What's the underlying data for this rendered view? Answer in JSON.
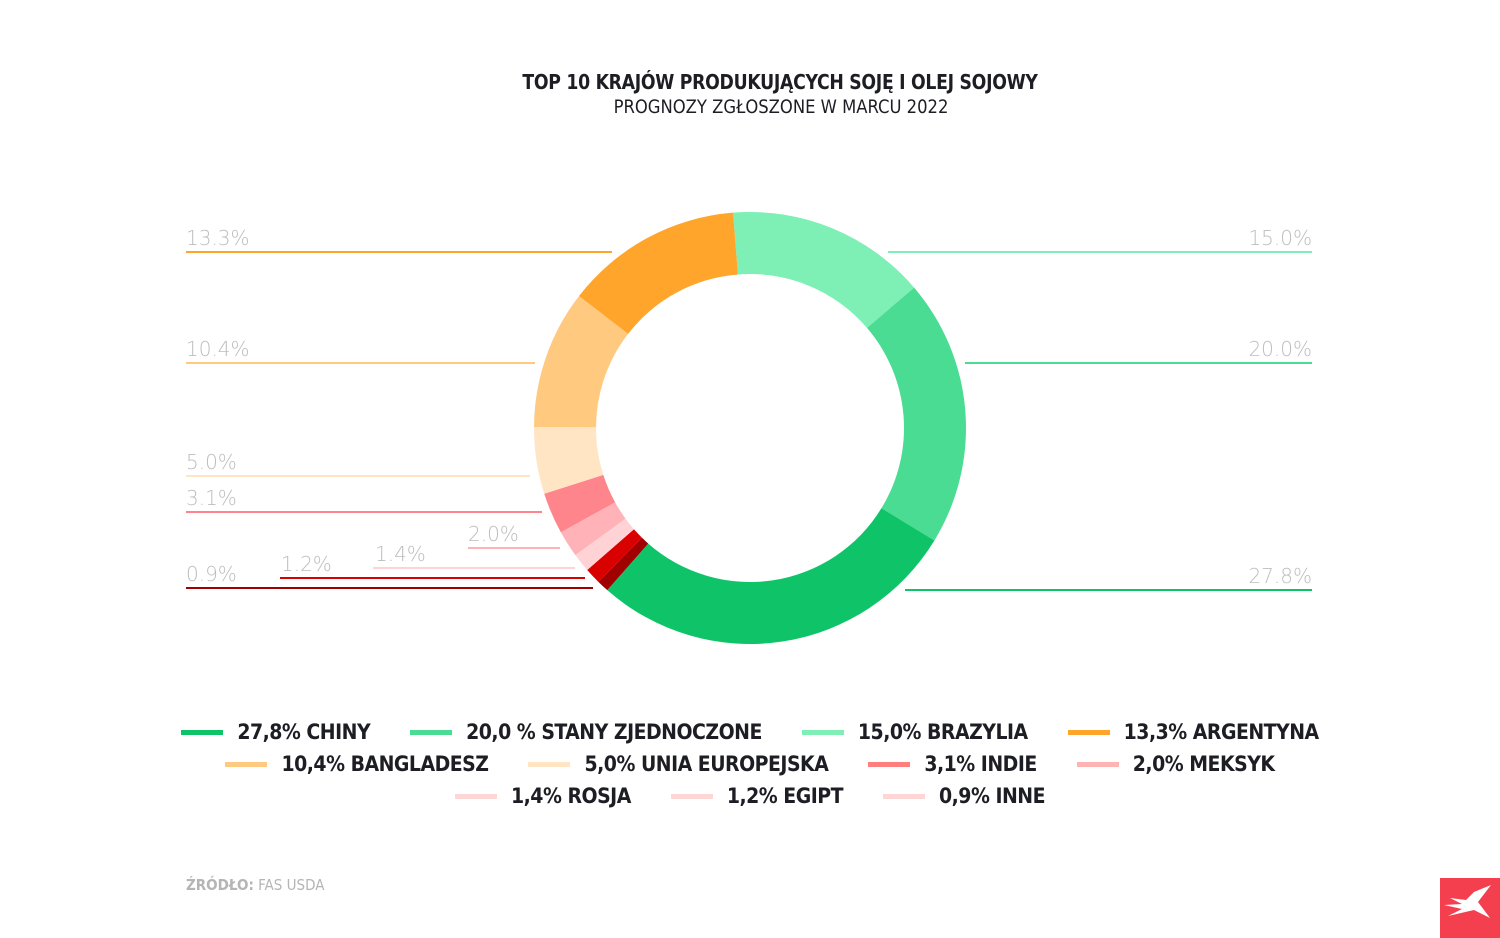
{
  "chart_data": {
    "type": "pie",
    "donut": true,
    "title": "TOP 10 KRAJÓW PRODUKUJĄCYCH SOJĘ I OLEJ SOJOWY",
    "subtitle": "PROGNOZY ZGŁOSZONE W MARCU 2022",
    "slices": [
      {
        "label": "15.0%",
        "value": 15.0,
        "color": "#7ef0b5"
      },
      {
        "label": "20.0%",
        "value": 20.0,
        "color": "#4bdc94"
      },
      {
        "label": "27.8%",
        "value": 27.8,
        "color": "#0fc468"
      },
      {
        "label": "0.9%",
        "value": 0.9,
        "color": "#a00000"
      },
      {
        "label": "1.2%",
        "value": 1.2,
        "color": "#d90000"
      },
      {
        "label": "1.4%",
        "value": 1.4,
        "color": "#ffd3d6"
      },
      {
        "label": "2.0%",
        "value": 2.0,
        "color": "#ffb3b8"
      },
      {
        "label": "3.1%",
        "value": 3.1,
        "color": "#ff858c"
      },
      {
        "label": "5.0%",
        "value": 5.0,
        "color": "#ffe5c4"
      },
      {
        "label": "10.4%",
        "value": 10.4,
        "color": "#ffca80"
      },
      {
        "label": "13.3%",
        "value": 13.3,
        "color": "#ffa52b"
      }
    ],
    "legend": [
      [
        {
          "text": "27,8% CHINY",
          "color": "#0fc468"
        },
        {
          "text": "20,0 % STANY ZJEDNOCZONE",
          "color": "#4bdc94"
        },
        {
          "text": "15,0% BRAZYLIA",
          "color": "#7ef0b5"
        },
        {
          "text": "13,3% ARGENTYNA",
          "color": "#ffa52b"
        }
      ],
      [
        {
          "text": "10,4% BANGLADESZ",
          "color": "#ffca80"
        },
        {
          "text": "5,0% UNIA EUROPEJSKA",
          "color": "#ffe5c4"
        },
        {
          "text": "3,1% INDIE",
          "color": "#ff7f7f"
        },
        {
          "text": "2,0% MEKSYK",
          "color": "#ffb3b3"
        }
      ],
      [
        {
          "text": "1,4% ROSJA",
          "color": "#ffd6d6"
        },
        {
          "text": "1,2% EGIPT",
          "color": "#ffd6d6"
        },
        {
          "text": "0,9% INNE",
          "color": "#ffd6d6"
        }
      ]
    ]
  },
  "source": {
    "label": "ŹRÓDŁO:",
    "value": "FAS USDA"
  },
  "logo": {
    "text": "X",
    "color": "#f43f4f"
  }
}
